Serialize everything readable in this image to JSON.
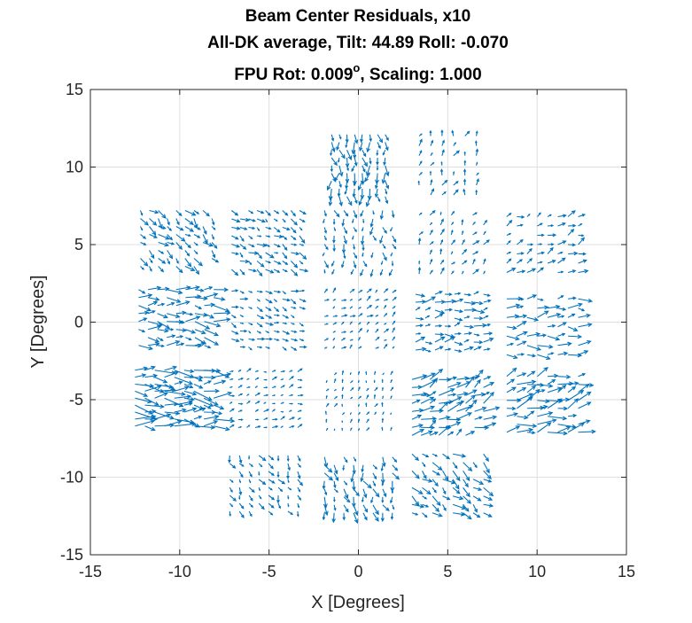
{
  "chart_data": {
    "type": "quiver",
    "title": [
      "Beam Center Residuals, x10",
      "All-DK average, Tilt: 44.89  Roll: -0.070",
      "FPU Rot: 0.009",
      "o",
      ", Scaling: 1.000"
    ],
    "xlabel": "X [Degrees]",
    "ylabel": "Y [Degrees]",
    "xlim": [
      -15,
      15
    ],
    "ylim": [
      -15,
      15
    ],
    "xticks": [
      -15,
      -10,
      -5,
      0,
      5,
      10,
      15
    ],
    "yticks": [
      -15,
      -10,
      -5,
      0,
      5,
      10,
      15
    ],
    "xtick_labels": [
      "-15",
      "-10",
      "-5",
      "0",
      "5",
      "10",
      "15"
    ],
    "ytick_labels": [
      "-15",
      "-10",
      "-5",
      "0",
      "5",
      "10",
      "15"
    ],
    "grid": true,
    "arrow_color": "#0072BD",
    "tiles": [
      {
        "cx": 0.0,
        "cy": 10.1,
        "half_w": 1.5,
        "half_h": 2.0,
        "cols": 8,
        "rows": 9,
        "angle_deg": -88,
        "len": 0.6
      },
      {
        "cx": 5.0,
        "cy": 10.1,
        "half_w": 1.6,
        "half_h": 1.9,
        "cols": 6,
        "rows": 7,
        "angle_deg": 72,
        "len": 0.35
      },
      {
        "cx": -10.2,
        "cy": 5.4,
        "half_w": 2.0,
        "half_h": 1.8,
        "cols": 9,
        "rows": 8,
        "angle_deg": -45,
        "len": 0.55
      },
      {
        "cx": -5.2,
        "cy": 5.3,
        "half_w": 1.9,
        "half_h": 1.9,
        "cols": 9,
        "rows": 8,
        "angle_deg": -35,
        "len": 0.45
      },
      {
        "cx": 0.0,
        "cy": 5.3,
        "half_w": 1.9,
        "half_h": 1.9,
        "cols": 8,
        "rows": 8,
        "angle_deg": -85,
        "len": 0.45
      },
      {
        "cx": 5.2,
        "cy": 5.0,
        "half_w": 1.8,
        "half_h": 1.9,
        "cols": 7,
        "rows": 7,
        "angle_deg": 60,
        "len": 0.35
      },
      {
        "cx": 10.3,
        "cy": 5.0,
        "half_w": 2.0,
        "half_h": 1.8,
        "cols": 8,
        "rows": 7,
        "angle_deg": 25,
        "len": 0.45
      },
      {
        "cx": -10.2,
        "cy": 0.3,
        "half_w": 2.1,
        "half_h": 1.8,
        "cols": 9,
        "rows": 8,
        "angle_deg": -5,
        "len": 0.75
      },
      {
        "cx": -5.2,
        "cy": 0.2,
        "half_w": 1.9,
        "half_h": 1.8,
        "cols": 9,
        "rows": 8,
        "angle_deg": -20,
        "len": 0.35
      },
      {
        "cx": 0.0,
        "cy": 0.1,
        "half_w": 1.9,
        "half_h": 1.8,
        "cols": 9,
        "rows": 8,
        "angle_deg": 40,
        "len": 0.28
      },
      {
        "cx": 5.1,
        "cy": 0.0,
        "half_w": 1.9,
        "half_h": 1.8,
        "cols": 8,
        "rows": 8,
        "angle_deg": 8,
        "len": 0.55
      },
      {
        "cx": 10.3,
        "cy": -0.3,
        "half_w": 2.0,
        "half_h": 1.8,
        "cols": 8,
        "rows": 7,
        "angle_deg": 4,
        "len": 0.7
      },
      {
        "cx": -10.3,
        "cy": -4.9,
        "half_w": 2.2,
        "half_h": 1.8,
        "cols": 9,
        "rows": 9,
        "angle_deg": -3,
        "len": 0.95
      },
      {
        "cx": -5.3,
        "cy": -5.0,
        "half_w": 1.9,
        "half_h": 1.8,
        "cols": 9,
        "rows": 8,
        "angle_deg": 15,
        "len": 0.25
      },
      {
        "cx": 0.0,
        "cy": -5.2,
        "half_w": 1.8,
        "half_h": 1.8,
        "cols": 9,
        "rows": 8,
        "angle_deg": 70,
        "len": 0.2
      },
      {
        "cx": 5.0,
        "cy": -5.5,
        "half_w": 2.0,
        "half_h": 1.8,
        "cols": 9,
        "rows": 8,
        "angle_deg": 28,
        "len": 0.8
      },
      {
        "cx": 10.3,
        "cy": -5.3,
        "half_w": 2.0,
        "half_h": 1.8,
        "cols": 8,
        "rows": 8,
        "angle_deg": 18,
        "len": 0.9
      },
      {
        "cx": -5.3,
        "cy": -10.4,
        "half_w": 1.9,
        "half_h": 1.8,
        "cols": 8,
        "rows": 8,
        "angle_deg": -65,
        "len": 0.4
      },
      {
        "cx": 0.0,
        "cy": -10.5,
        "half_w": 1.9,
        "half_h": 1.8,
        "cols": 8,
        "rows": 8,
        "angle_deg": -75,
        "len": 0.55
      },
      {
        "cx": 5.0,
        "cy": -10.4,
        "half_w": 2.0,
        "half_h": 1.9,
        "cols": 8,
        "rows": 8,
        "angle_deg": -40,
        "len": 0.6
      }
    ]
  }
}
